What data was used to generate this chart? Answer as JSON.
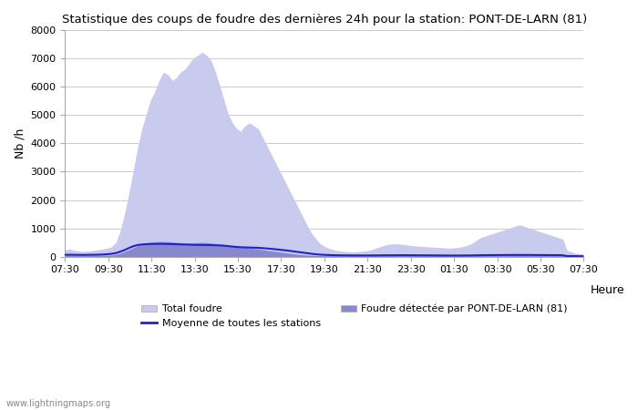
{
  "title": "Statistique des coups de foudre des dernières 24h pour la station: PONT-DE-LARN (81)",
  "ylabel": "Nb /h",
  "xlabel": "Heure",
  "watermark": "www.lightningmaps.org",
  "ylim": [
    0,
    8000
  ],
  "yticks": [
    0,
    1000,
    2000,
    3000,
    4000,
    5000,
    6000,
    7000,
    8000
  ],
  "xtick_labels": [
    "07:30",
    "09:30",
    "11:30",
    "13:30",
    "15:30",
    "17:30",
    "19:30",
    "21:30",
    "23:30",
    "01:30",
    "03:30",
    "05:30",
    "07:30"
  ],
  "legend_total": "Total foudre",
  "legend_station": "Foudre détectée par PONT-DE-LARN (81)",
  "legend_moyenne": "Moyenne de toutes les stations",
  "color_total_fill": "#c8caee",
  "color_station_fill": "#8888cc",
  "color_moyenne_line": "#2222cc",
  "total_foudre": [
    200,
    250,
    200,
    180,
    160,
    170,
    180,
    200,
    220,
    250,
    280,
    330,
    500,
    900,
    1500,
    2200,
    3000,
    3800,
    4500,
    5000,
    5500,
    5800,
    6200,
    6500,
    6400,
    6200,
    6300,
    6500,
    6600,
    6800,
    7000,
    7100,
    7200,
    7100,
    6900,
    6500,
    6000,
    5500,
    5000,
    4700,
    4500,
    4400,
    4600,
    4700,
    4600,
    4500,
    4200,
    3900,
    3600,
    3300,
    3000,
    2700,
    2400,
    2100,
    1800,
    1500,
    1200,
    900,
    700,
    500,
    380,
    300,
    250,
    200,
    180,
    160,
    150,
    140,
    150,
    160,
    180,
    200,
    250,
    300,
    350,
    400,
    420,
    430,
    420,
    400,
    380,
    360,
    350,
    340,
    330,
    320,
    310,
    300,
    290,
    280,
    280,
    290,
    310,
    340,
    380,
    450,
    550,
    650,
    700,
    750,
    800,
    850,
    900,
    950,
    1000,
    1050,
    1100,
    1050,
    1000,
    950,
    900,
    850,
    800,
    750,
    700,
    650,
    600,
    200,
    150,
    100,
    80,
    70
  ],
  "foudre_station": [
    20,
    25,
    20,
    18,
    16,
    17,
    18,
    20,
    22,
    25,
    28,
    33,
    60,
    100,
    160,
    220,
    290,
    360,
    420,
    460,
    490,
    500,
    510,
    510,
    500,
    490,
    480,
    470,
    460,
    450,
    460,
    470,
    480,
    470,
    460,
    440,
    420,
    400,
    380,
    360,
    340,
    320,
    300,
    280,
    260,
    240,
    220,
    200,
    180,
    160,
    140,
    120,
    100,
    80,
    60,
    45,
    35,
    25,
    18,
    14,
    12,
    10,
    9,
    8,
    8,
    8,
    7,
    7,
    8,
    8,
    9,
    10,
    11,
    12,
    13,
    14,
    15,
    16,
    17,
    18,
    17,
    16,
    15,
    14,
    13,
    12,
    11,
    10,
    10,
    10,
    10,
    11,
    12,
    13,
    14,
    16,
    20,
    25,
    28,
    30,
    32,
    34,
    36,
    38,
    40,
    42,
    44,
    42,
    40,
    38,
    36,
    34,
    32,
    30,
    28,
    26,
    24,
    8,
    6,
    4,
    4,
    4
  ],
  "moyenne": [
    60,
    65,
    62,
    60,
    58,
    60,
    62,
    64,
    68,
    75,
    85,
    100,
    130,
    180,
    240,
    310,
    370,
    410,
    430,
    440,
    445,
    448,
    450,
    448,
    445,
    440,
    435,
    430,
    425,
    420,
    415,
    412,
    410,
    408,
    405,
    400,
    395,
    385,
    370,
    355,
    340,
    330,
    325,
    320,
    315,
    310,
    300,
    288,
    275,
    260,
    245,
    228,
    210,
    190,
    170,
    150,
    130,
    110,
    90,
    75,
    65,
    58,
    52,
    48,
    46,
    44,
    42,
    40,
    40,
    40,
    40,
    41,
    42,
    43,
    44,
    45,
    46,
    47,
    48,
    49,
    48,
    47,
    46,
    45,
    44,
    43,
    42,
    41,
    40,
    39,
    38,
    38,
    38,
    39,
    40,
    42,
    45,
    48,
    50,
    52,
    53,
    54,
    55,
    56,
    57,
    58,
    59,
    58,
    57,
    56,
    55,
    54,
    53,
    52,
    51,
    50,
    49,
    20,
    18,
    16,
    15,
    14
  ]
}
